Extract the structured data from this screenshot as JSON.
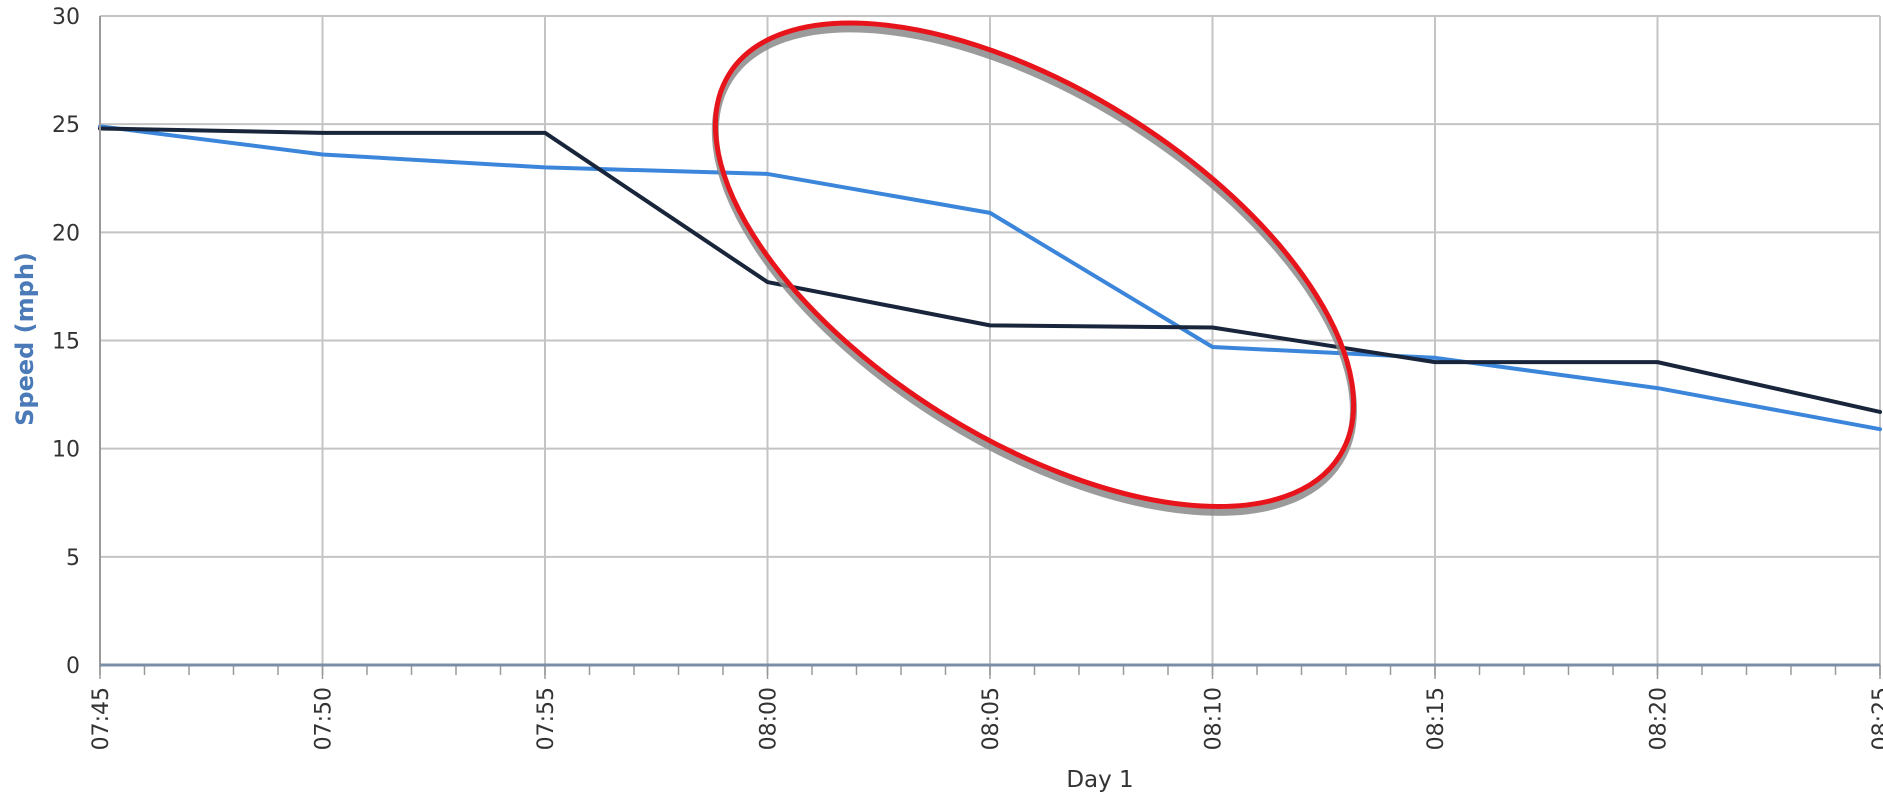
{
  "chart_data": {
    "type": "line",
    "xlabel": "Day 1",
    "ylabel": "Speed (mph)",
    "x": [
      "07:45",
      "07:50",
      "07:55",
      "08:00",
      "08:05",
      "08:10",
      "08:15",
      "08:20",
      "08:25"
    ],
    "x_ticks": [
      "07:45",
      "07:50",
      "07:55",
      "08:00",
      "08:05",
      "08:10",
      "08:15",
      "08:20",
      "08:25"
    ],
    "y_ticks": [
      "0",
      "5",
      "10",
      "15",
      "20",
      "25",
      "30"
    ],
    "ylim": [
      0,
      30
    ],
    "grid": true,
    "series": [
      {
        "color": "#3b86db",
        "values": [
          24.9,
          23.6,
          23.0,
          22.7,
          20.9,
          14.7,
          14.2,
          12.8,
          10.9
        ]
      },
      {
        "color": "#18253a",
        "values": [
          24.8,
          24.6,
          24.6,
          17.7,
          15.7,
          15.6,
          14.0,
          14.0,
          11.7
        ]
      }
    ],
    "annotations": [
      {
        "type": "ellipse",
        "color": "#e8141b",
        "center_x": "08:06",
        "center_y": 18.5,
        "description": "highlight"
      }
    ]
  }
}
